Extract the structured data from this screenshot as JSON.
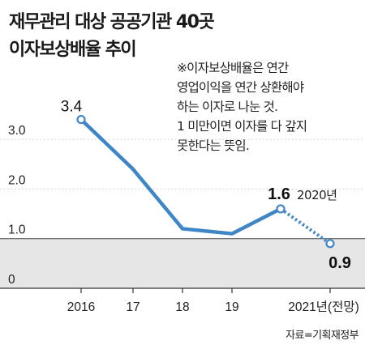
{
  "title_lines": [
    "재무관리 대상 공공기관 40곳",
    "이자보상배율 추이"
  ],
  "note_lines": [
    "※이자보상배율은 연간",
    "영업이익을 연간 상환해야",
    "하는 이자로 나눈 것.",
    "1 미만이면 이자를 다 갚지",
    "못한다는 뜻임."
  ],
  "source": "자료=기획재정부",
  "colors": {
    "line": "#3f86c7",
    "marker_fill": "#ffffff",
    "below_one_shade": "#e6e6e6",
    "grid": "#c8c8c8",
    "axis": "#333333"
  },
  "chart_data": {
    "type": "line",
    "categories": [
      "2016",
      "17",
      "18",
      "19",
      "2021년(전망)"
    ],
    "series": [
      {
        "x": [
          "2016",
          "2017",
          "2018",
          "2019",
          "2020",
          "2021"
        ],
        "values": [
          3.4,
          2.4,
          1.2,
          1.1,
          1.6,
          0.9
        ],
        "forecast_from_index": 4
      }
    ],
    "ylim": [
      0,
      3.4
    ],
    "yticks": [
      0,
      1.0,
      2.0,
      3.0
    ],
    "ytick_labels": [
      "0",
      "1.0",
      "2.0",
      "3.0"
    ],
    "shaded_below": 1.0,
    "annotations": [
      {
        "x": "2016",
        "value": 3.4,
        "text": "3.4"
      },
      {
        "x": "2020",
        "value": 1.6,
        "text": "1.6",
        "note": "2020년"
      },
      {
        "x": "2021",
        "value": 0.9,
        "text": "0.9"
      }
    ]
  }
}
